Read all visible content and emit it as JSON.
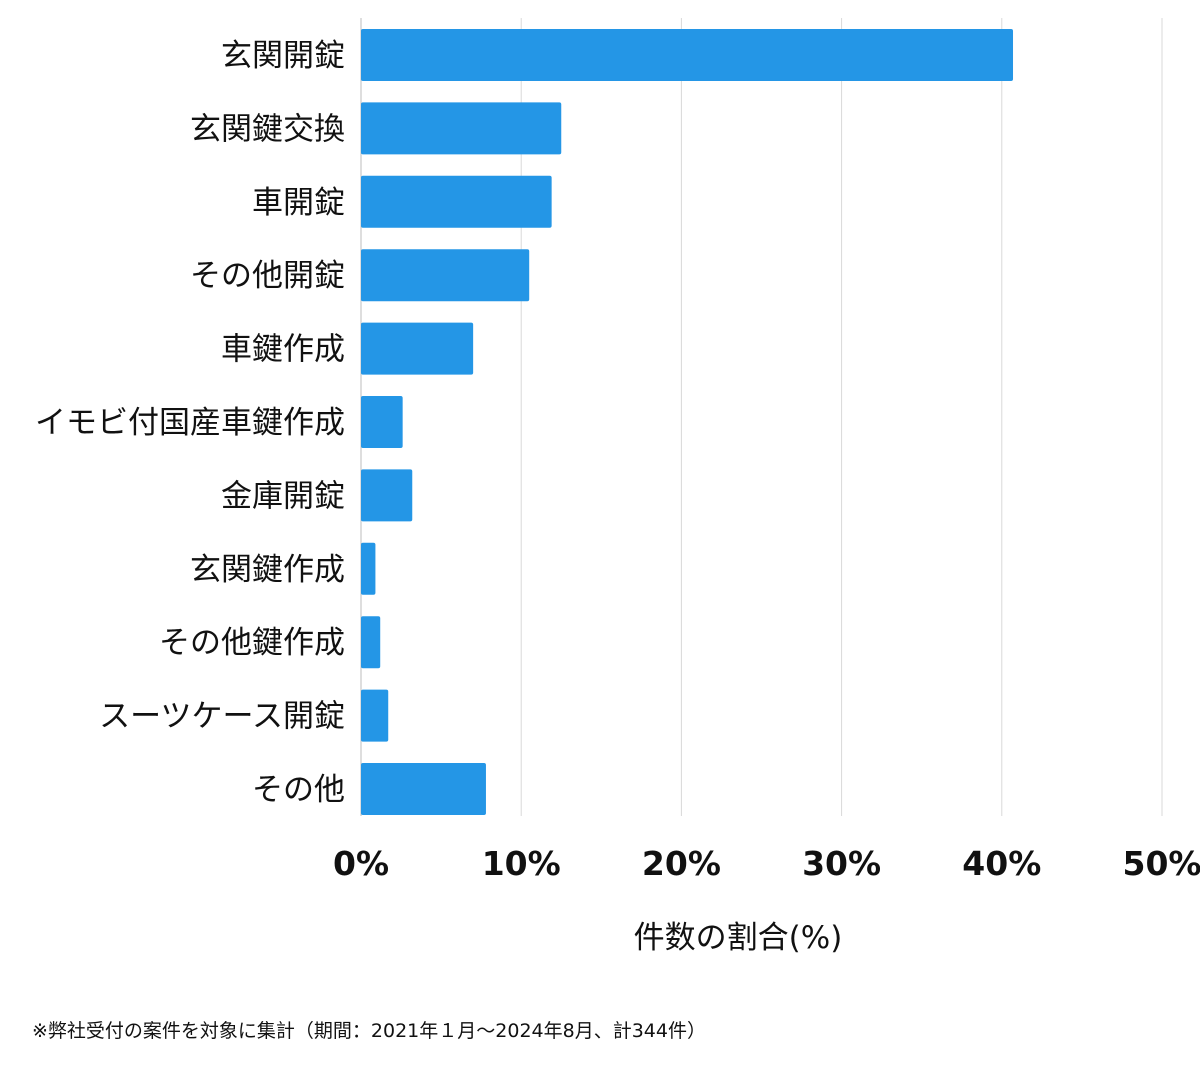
{
  "chart_data": {
    "type": "bar",
    "orientation": "horizontal",
    "categories": [
      "玄関開錠",
      "玄関鍵交換",
      "車開錠",
      "その他開錠",
      "車鍵作成",
      "イモビ付国産車鍵作成",
      "金庫開錠",
      "玄関鍵作成",
      "その他鍵作成",
      "スーツケース開錠",
      "その他"
    ],
    "values": [
      40.7,
      12.5,
      11.9,
      10.5,
      7.0,
      2.6,
      3.2,
      0.9,
      1.2,
      1.7,
      7.8
    ],
    "xlabel": "件数の割合(%)",
    "ylabel": "",
    "xlim": [
      0,
      50
    ],
    "xticks": [
      0,
      10,
      20,
      30,
      40,
      50
    ],
    "xtick_labels": [
      "0%",
      "10%",
      "20%",
      "30%",
      "40%",
      "50%"
    ],
    "bar_color": "#2496e6",
    "grid": true,
    "grid_color": "#d9d9d9"
  },
  "footnote": "※弊社受付の案件を対象に集計（期間：2021年１月〜2024年8月、計344件）"
}
